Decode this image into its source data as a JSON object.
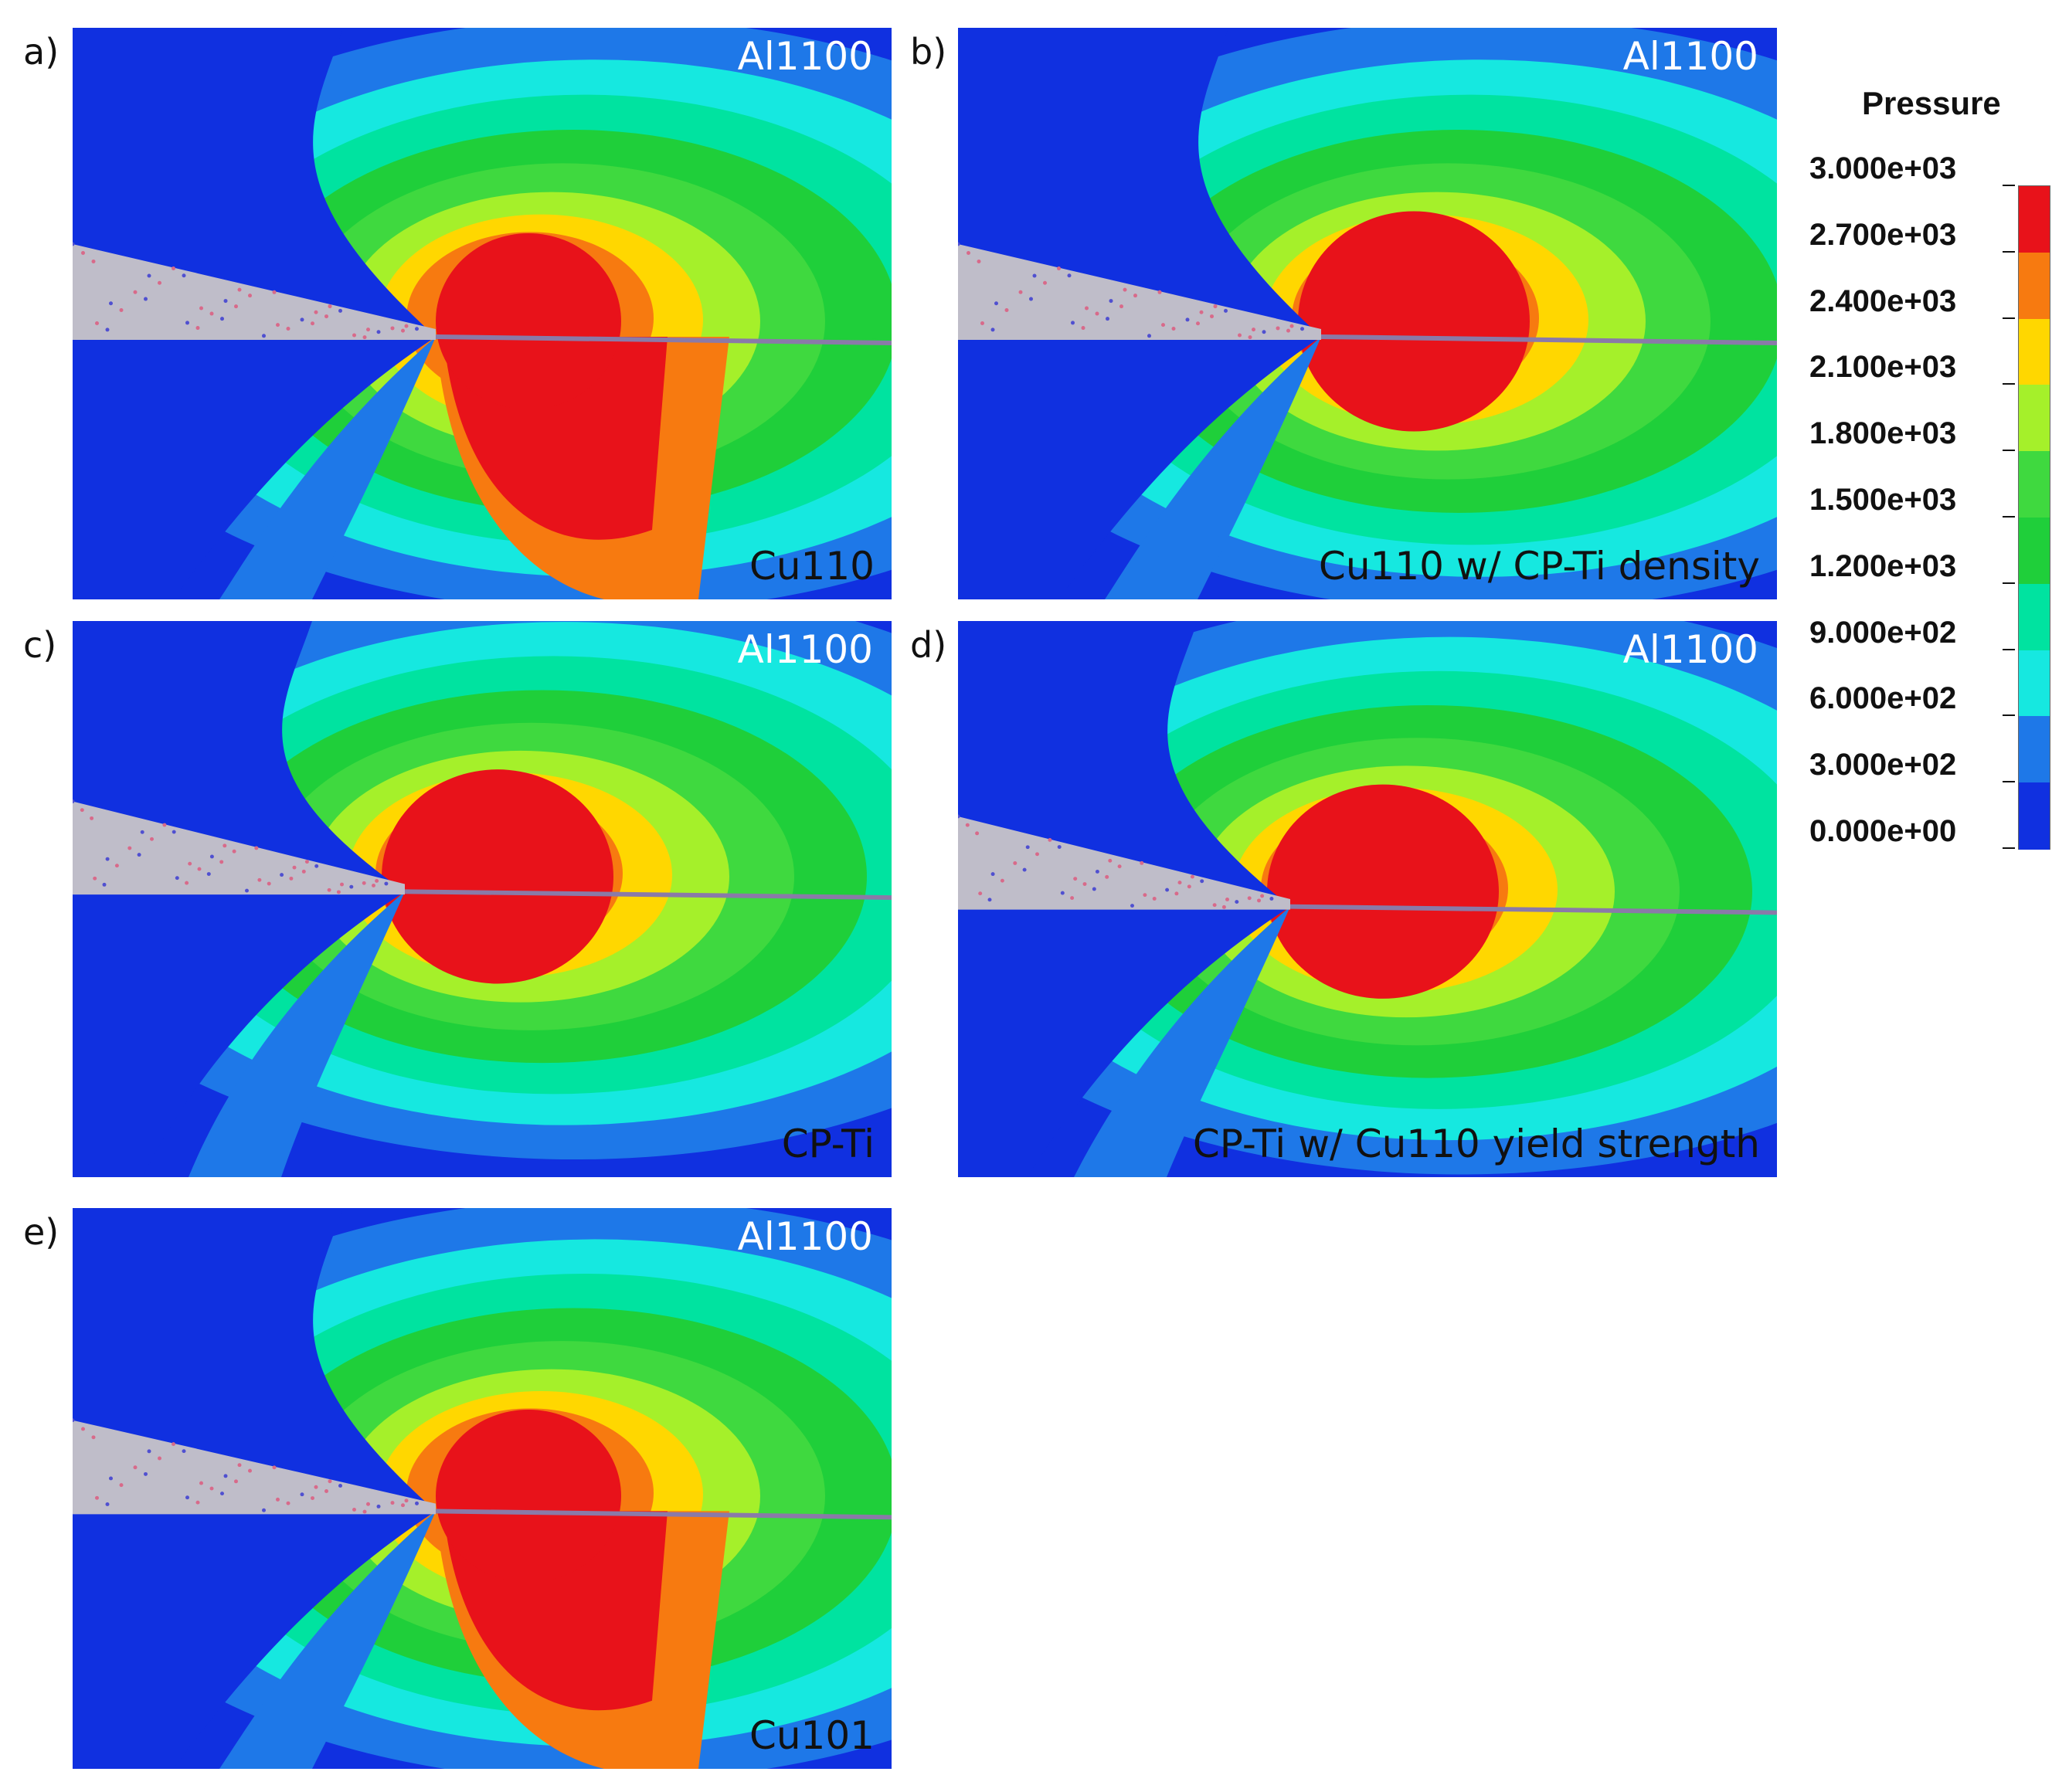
{
  "panels": [
    {
      "letter": "a)",
      "top_label": "Al1100",
      "bottom_label": "Cu110",
      "variant": "a"
    },
    {
      "letter": "b)",
      "top_label": "Al1100",
      "bottom_label": "Cu110 w/ CP-Ti density",
      "variant": "b"
    },
    {
      "letter": "c)",
      "top_label": "Al1100",
      "bottom_label": "CP-Ti",
      "variant": "c"
    },
    {
      "letter": "d)",
      "top_label": "Al1100",
      "bottom_label": "CP-Ti w/ Cu110 yield strength",
      "variant": "d"
    },
    {
      "letter": "e)",
      "top_label": "Al1100",
      "bottom_label": "Cu101",
      "variant": "e"
    }
  ],
  "legend": {
    "title": "Pressure",
    "ticks": [
      "3.000e+03",
      "2.700e+03",
      "2.400e+03",
      "2.100e+03",
      "1.800e+03",
      "1.500e+03",
      "1.200e+03",
      "9.000e+02",
      "6.000e+02",
      "3.000e+02",
      "0.000e+00"
    ],
    "colors": [
      "#e8121a",
      "#f77a10",
      "#ffd700",
      "#a5f02a",
      "#3fd93f",
      "#1fcf3a",
      "#00e3a0",
      "#16e8e0",
      "#1e78e8",
      "#1030e0"
    ]
  }
}
